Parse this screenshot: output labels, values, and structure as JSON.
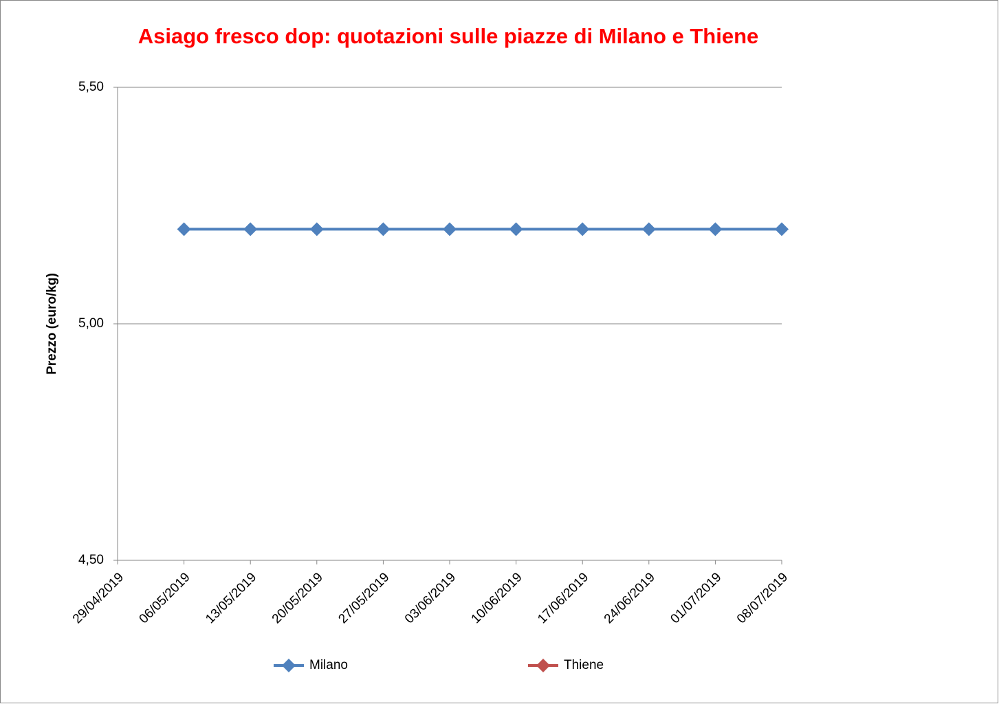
{
  "chart_data": {
    "type": "line",
    "title": "Asiago fresco dop: quotazioni sulle piazze di Milano e Thiene",
    "y_label": "Prezzo (euro/kg)",
    "categories": [
      "29/04/2019",
      "06/05/2019",
      "13/05/2019",
      "20/05/2019",
      "27/05/2019",
      "03/06/2019",
      "10/06/2019",
      "17/06/2019",
      "24/06/2019",
      "01/07/2019",
      "08/07/2019"
    ],
    "series": [
      {
        "name": "Milano",
        "color": "#4f81bd",
        "values": [
          null,
          5.2,
          5.2,
          5.2,
          5.2,
          5.2,
          5.2,
          5.2,
          5.2,
          5.2,
          5.2
        ]
      },
      {
        "name": "Thiene",
        "color": "#c0504d",
        "values": [
          null,
          null,
          null,
          null,
          null,
          null,
          null,
          null,
          null,
          null,
          null
        ]
      }
    ],
    "ylim": [
      4.5,
      5.5
    ],
    "yticks": [
      {
        "value": 4.5,
        "label": "4,50"
      },
      {
        "value": 5.0,
        "label": "5,00"
      },
      {
        "value": 5.5,
        "label": "5,50"
      }
    ],
    "grid": true,
    "legend": "bottom"
  }
}
